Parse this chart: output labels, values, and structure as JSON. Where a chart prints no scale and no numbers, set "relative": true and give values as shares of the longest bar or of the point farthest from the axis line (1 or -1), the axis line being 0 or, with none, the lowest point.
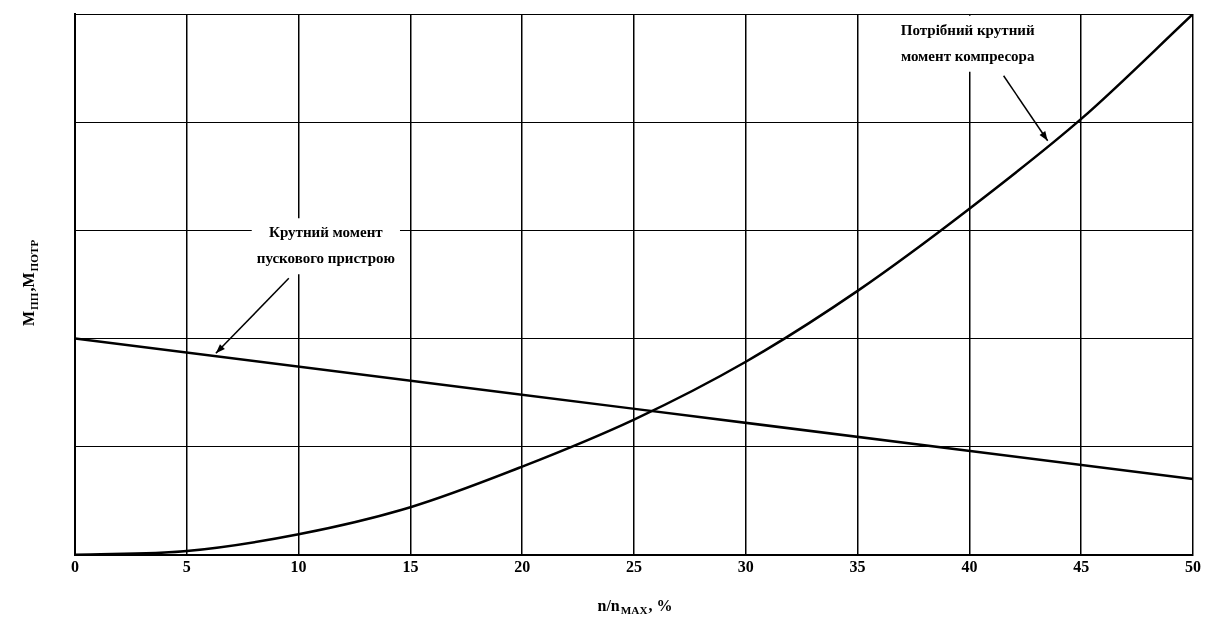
{
  "chart_data": {
    "type": "line",
    "relative": true,
    "xlabel": "n/n$_{MAX}$, %",
    "ylabel": "M$_{ПП}$,M$_{ПОТР}$",
    "x": [
      0,
      5,
      10,
      15,
      20,
      25,
      30,
      35,
      40,
      45,
      50
    ],
    "xlim": [
      0,
      50
    ],
    "xticks": [
      0,
      5,
      10,
      15,
      20,
      25,
      30,
      35,
      40,
      45,
      50
    ],
    "series": [
      {
        "color": "#000000",
        "x": [
          0,
          50
        ],
        "values": [
          0.4,
          0.14
        ]
      },
      {
        "color": "#000000",
        "values": [
          0,
          0.007,
          0.038,
          0.088,
          0.163,
          0.25,
          0.357,
          0.488,
          0.64,
          0.806,
          1
        ]
      }
    ],
    "annotations": [
      {
        "text": "Крутний момент\nпускового пристрою",
        "x": 6.3,
        "y": 0.367
      },
      {
        "text": "Потрібний крутний\nмомент компресора",
        "x": 43.5,
        "y": 0.76
      }
    ],
    "grid": true,
    "legend": false,
    "marker": "none",
    "line_style": "solid",
    "tick_labels": "x"
  }
}
